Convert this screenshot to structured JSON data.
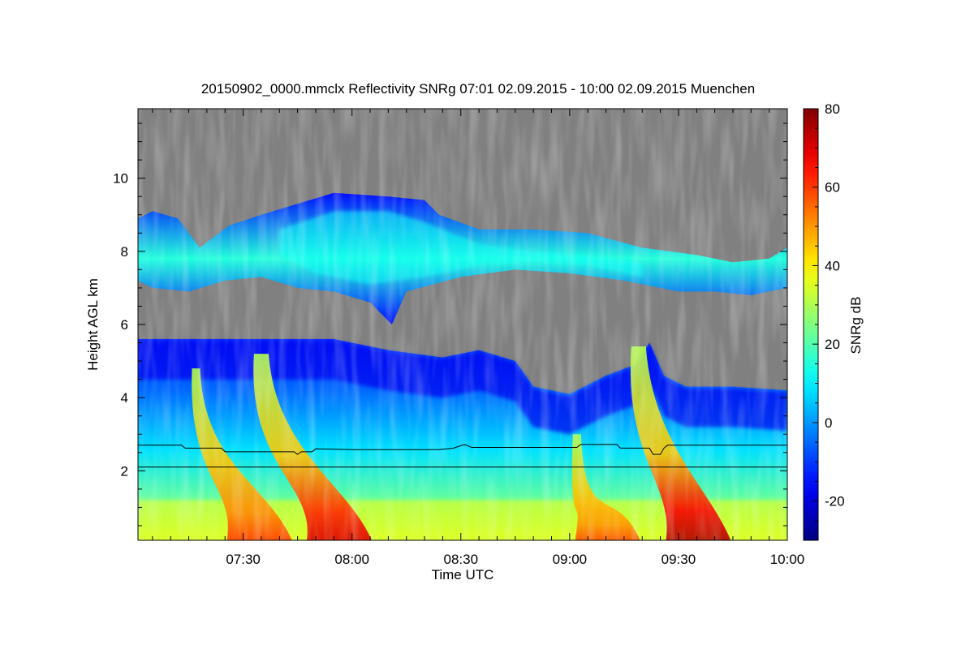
{
  "chart_data": {
    "type": "heatmap",
    "title": "20150902_0000.mmclx Reflectivity SNRg   07:01 02.09.2015 - 10:00 02.09.2015 Muenchen",
    "xlabel": "Time UTC",
    "ylabel": "Height AGL km",
    "colorbar_label": "SNRg dB",
    "x_range": [
      "07:01",
      "10:00"
    ],
    "ylim": [
      0.1,
      11.9
    ],
    "clim": [
      -30,
      80
    ],
    "x_ticks": [
      "07:30",
      "08:00",
      "08:30",
      "09:00",
      "09:30",
      "10:00"
    ],
    "y_ticks": [
      "2",
      "4",
      "6",
      "8",
      "10"
    ],
    "colorbar_ticks": [
      "-20",
      "0",
      "20",
      "40",
      "60",
      "80"
    ],
    "colormap": "jet",
    "no_signal_color": "#808080",
    "reference_lines": [
      {
        "name": "",
        "type": "variable",
        "points": [
          [
            "07:01",
            2.7
          ],
          [
            "07:13",
            2.7
          ],
          [
            "07:14",
            2.62
          ],
          [
            "07:24",
            2.62
          ],
          [
            "07:25",
            2.52
          ],
          [
            "07:44",
            2.52
          ],
          [
            "07:45",
            2.45
          ],
          [
            "07:46",
            2.52
          ],
          [
            "07:49",
            2.52
          ],
          [
            "07:50",
            2.6
          ],
          [
            "08:00",
            2.58
          ],
          [
            "08:24",
            2.58
          ],
          [
            "08:28",
            2.62
          ],
          [
            "08:31",
            2.72
          ],
          [
            "08:33",
            2.64
          ],
          [
            "09:02",
            2.64
          ],
          [
            "09:03",
            2.72
          ],
          [
            "09:13",
            2.72
          ],
          [
            "09:14",
            2.62
          ],
          [
            "09:22",
            2.62
          ],
          [
            "09:23",
            2.45
          ],
          [
            "09:25",
            2.45
          ],
          [
            "09:26",
            2.62
          ],
          [
            "09:27",
            2.7
          ],
          [
            "10:00",
            2.7
          ]
        ]
      },
      {
        "name": "",
        "type": "constant",
        "points": [
          [
            "07:01",
            2.1
          ],
          [
            "10:00",
            2.1
          ]
        ]
      }
    ],
    "echo_layers": [
      {
        "name": "",
        "height_range_km": [
          6.8,
          9.6
        ],
        "time_range": [
          "07:01",
          "10:00"
        ],
        "snr_range_db": [
          -15,
          15
        ]
      },
      {
        "name": "",
        "height_range_km": [
          0.1,
          5.6
        ],
        "time_range": [
          "07:01",
          "10:00"
        ],
        "snr_range_db": [
          -20,
          75
        ]
      }
    ],
    "fall_streaks": [
      {
        "name": "",
        "top_time": "07:17",
        "top_height_km": 4.8,
        "bottom_time": "07:30",
        "peak_snr_db": 60
      },
      {
        "name": "",
        "top_time": "07:35",
        "top_height_km": 5.2,
        "bottom_time": "07:52",
        "peak_snr_db": 70
      },
      {
        "name": "",
        "top_time": "09:02",
        "top_height_km": 3.0,
        "bottom_time": "09:06",
        "peak_snr_db": 58
      },
      {
        "name": "",
        "top_time": "09:19",
        "top_height_km": 5.4,
        "bottom_time": "09:31",
        "peak_snr_db": 75
      }
    ]
  }
}
